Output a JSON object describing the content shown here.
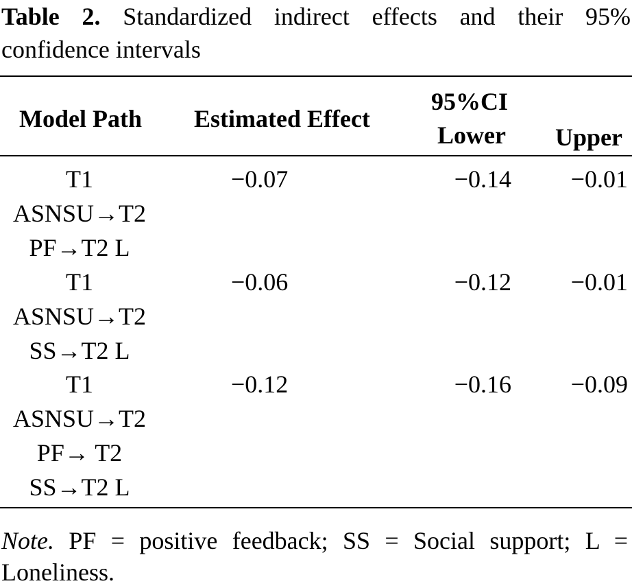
{
  "caption": {
    "label": "Table 2.",
    "text": "Standardized indirect effects and their 95% confidence intervals"
  },
  "table": {
    "headers": {
      "model_path": "Model Path",
      "estimated_effect": "Estimated Effect",
      "ci_group": "95%CI",
      "lower": "Lower",
      "upper": "Upper"
    },
    "rows": [
      {
        "path_lines": [
          "T1",
          "ASNSU→T2",
          "PF→T2 L"
        ],
        "estimate": "−0.07",
        "lower": "−0.14",
        "upper": "−0.01"
      },
      {
        "path_lines": [
          "T1",
          "ASNSU→T2",
          "SS→T2 L"
        ],
        "estimate": "−0.06",
        "lower": "−0.12",
        "upper": "−0.01"
      },
      {
        "path_lines": [
          "T1",
          "ASNSU→T2",
          "PF→ T2",
          "SS→T2 L"
        ],
        "estimate": "−0.12",
        "lower": "−0.16",
        "upper": "−0.09"
      }
    ]
  },
  "note": {
    "label": "Note.",
    "text": "PF = positive feedback; SS = Social support; L = Loneliness."
  }
}
